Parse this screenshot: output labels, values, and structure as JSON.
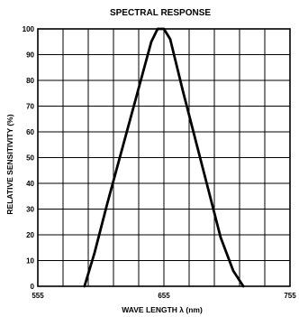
{
  "chart_data": {
    "type": "line",
    "title": "SPECTRAL RESPONSE",
    "xlabel": "WAVE LENGTH λ (nm)",
    "ylabel": "RELATIVE SENSITIVITY (%)",
    "xlim": [
      555,
      755
    ],
    "ylim": [
      0,
      100
    ],
    "x_ticks": [
      555,
      655,
      755
    ],
    "y_ticks": [
      0,
      10,
      20,
      30,
      40,
      50,
      60,
      70,
      80,
      90,
      100
    ],
    "grid": true,
    "series": [
      {
        "x": [
          592,
          600,
          610,
          620,
          630,
          640,
          645,
          650,
          655,
          660,
          665,
          670,
          680,
          690,
          700,
          710,
          718
        ],
        "y": [
          0,
          13,
          32,
          50,
          68,
          86,
          95,
          100,
          100,
          96,
          86,
          76,
          57,
          38,
          19,
          6,
          0
        ]
      }
    ]
  }
}
